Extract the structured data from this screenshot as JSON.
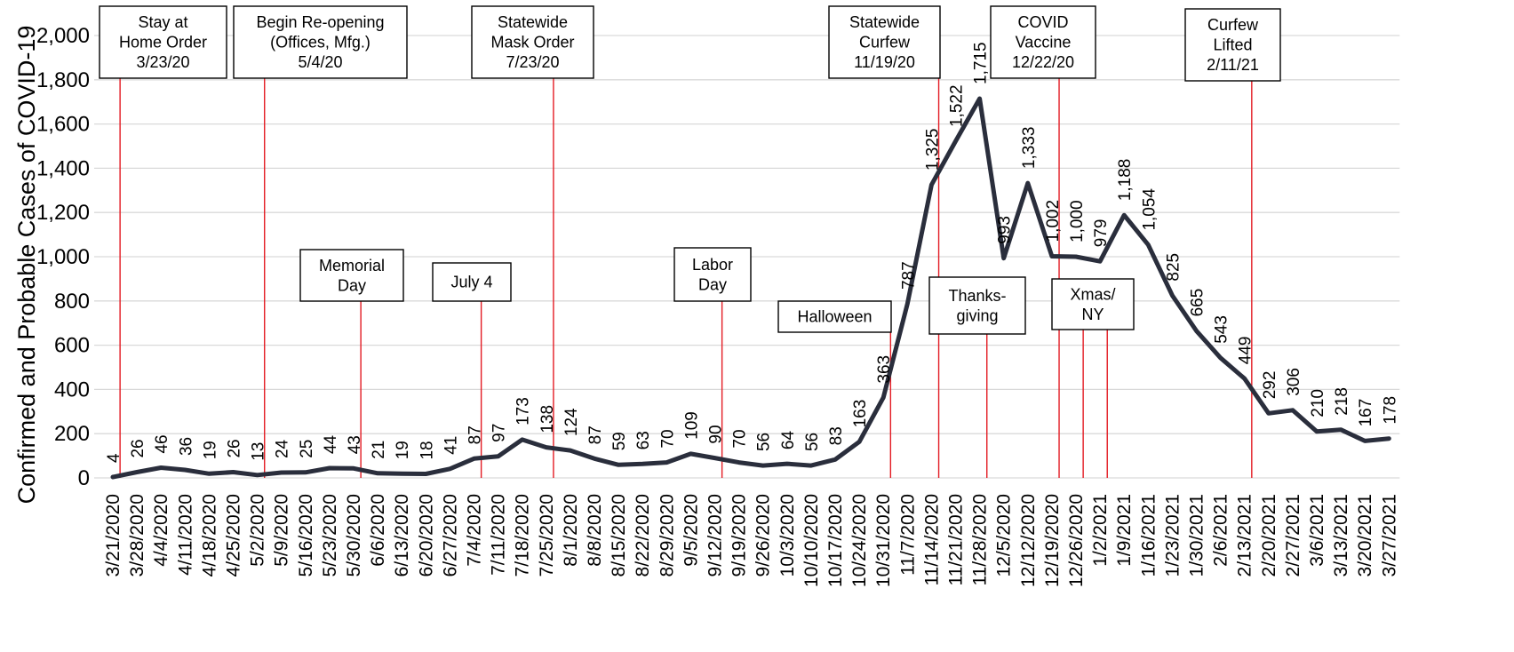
{
  "chart_data": {
    "type": "line",
    "title": "",
    "xlabel": "",
    "ylabel": "Confirmed and Probable Cases of COVID-19",
    "ylim": [
      0,
      2000
    ],
    "yticks": [
      0,
      200,
      400,
      600,
      800,
      1000,
      1200,
      1400,
      1600,
      1800,
      2000
    ],
    "ytick_labels": [
      "0",
      "200",
      "400",
      "600",
      "800",
      "1,000",
      "1,200",
      "1,400",
      "1,600",
      "1,800",
      "2,000"
    ],
    "grid": true,
    "legend": "none",
    "line_color": "#2a2e3c",
    "annotation_color": "#e31b23",
    "categories": [
      "3/21/2020",
      "3/28/2020",
      "4/4/2020",
      "4/11/2020",
      "4/18/2020",
      "4/25/2020",
      "5/2/2020",
      "5/9/2020",
      "5/16/2020",
      "5/23/2020",
      "5/30/2020",
      "6/6/2020",
      "6/13/2020",
      "6/20/2020",
      "6/27/2020",
      "7/4/2020",
      "7/11/2020",
      "7/18/2020",
      "7/25/2020",
      "8/1/2020",
      "8/8/2020",
      "8/15/2020",
      "8/22/2020",
      "8/29/2020",
      "9/5/2020",
      "9/12/2020",
      "9/19/2020",
      "9/26/2020",
      "10/3/2020",
      "10/10/2020",
      "10/17/2020",
      "10/24/2020",
      "10/31/2020",
      "11/7/2020",
      "11/14/2020",
      "11/21/2020",
      "11/28/2020",
      "12/5/2020",
      "12/12/2020",
      "12/19/2020",
      "12/26/2020",
      "1/2/2021",
      "1/9/2021",
      "1/16/2021",
      "1/23/2021",
      "1/30/2021",
      "2/6/2021",
      "2/13/2021",
      "2/20/2021",
      "2/27/2021",
      "3/6/2021",
      "3/13/2021",
      "3/20/2021",
      "3/27/2021"
    ],
    "values": [
      4,
      26,
      46,
      36,
      19,
      26,
      13,
      24,
      25,
      44,
      43,
      21,
      19,
      18,
      41,
      87,
      97,
      173,
      138,
      124,
      87,
      59,
      63,
      70,
      109,
      90,
      70,
      56,
      64,
      56,
      83,
      163,
      363,
      787,
      1325,
      1522,
      1715,
      993,
      1333,
      1002,
      1000,
      979,
      1188,
      1054,
      825,
      665,
      543,
      449,
      292,
      306,
      210,
      218,
      167,
      178
    ],
    "value_labels": [
      "4",
      "26",
      "46",
      "36",
      "19",
      "26",
      "13",
      "24",
      "25",
      "44",
      "43",
      "21",
      "19",
      "18",
      "41",
      "87",
      "97",
      "173",
      "138",
      "124",
      "87",
      "59",
      "63",
      "70",
      "109",
      "90",
      "70",
      "56",
      "64",
      "56",
      "83",
      "163",
      "363",
      "787",
      "1,325",
      "1,522",
      "1,715",
      "993",
      "1,333",
      "1,002",
      "1,000",
      "979",
      "1,188",
      "1,054",
      "825",
      "665",
      "543",
      "449",
      "292",
      "306",
      "210",
      "218",
      "167",
      "178"
    ],
    "annotations": [
      {
        "lines": [
          "Stay at",
          "Home Order",
          "3/23/20"
        ],
        "x": 0.3
      },
      {
        "lines": [
          "Begin Re-opening",
          "(Offices, Mfg.)",
          "5/4/20"
        ],
        "x": 6.3
      },
      {
        "lines": [
          "Memorial",
          "Day"
        ],
        "x": 10.3
      },
      {
        "lines": [
          "July 4"
        ],
        "x": 15.3
      },
      {
        "lines": [
          "Statewide",
          "Mask Order",
          "7/23/20"
        ],
        "x": 18.3
      },
      {
        "lines": [
          "Labor",
          "Day"
        ],
        "x": 25.3
      },
      {
        "lines": [
          "Halloween"
        ],
        "x": 32.3
      },
      {
        "lines": [
          "Statewide",
          "Curfew",
          "11/19/20"
        ],
        "x": 34.3
      },
      {
        "lines": [
          "Thanks-",
          "giving"
        ],
        "x": 36.3
      },
      {
        "lines": [
          "COVID",
          "Vaccine",
          "12/22/20"
        ],
        "x": 39.3
      },
      {
        "lines": [
          "Xmas/",
          "NY"
        ],
        "x": [
          40.3,
          41.3
        ]
      },
      {
        "lines": [
          "Curfew",
          "Lifted",
          "2/11/21"
        ],
        "x": 47.3
      }
    ]
  }
}
